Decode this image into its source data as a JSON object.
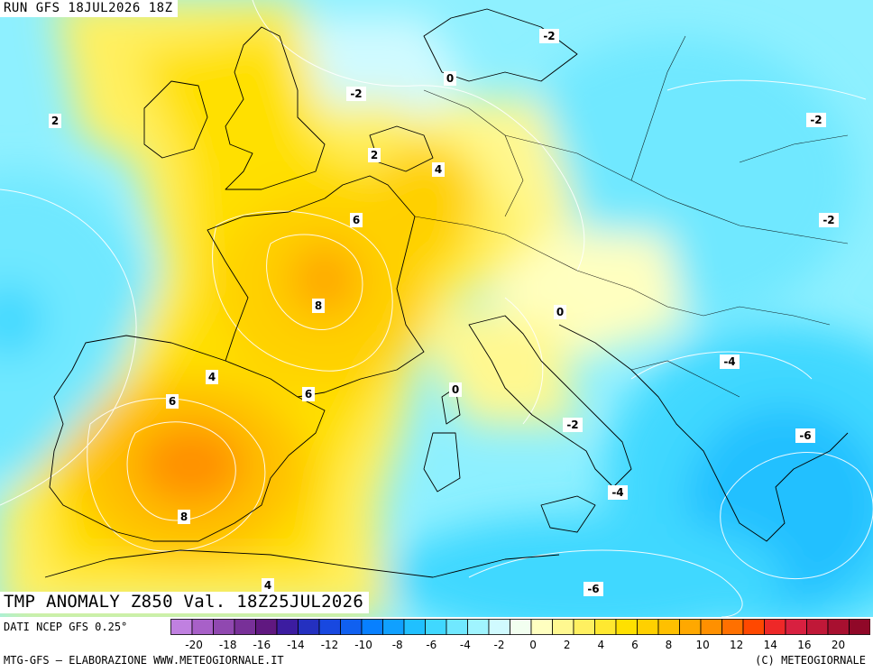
{
  "run_title": "RUN GFS 18JUL2026 18Z",
  "main_title": "TMP ANOMALY Z850 Val. 18Z25JUL2026",
  "footer": {
    "source": "DATI NCEP GFS 0.25°",
    "credit_left": "MTG-GFS — ELABORAZIONE WWW.METEOGIORNALE.IT",
    "credit_right": "(C) METEOGIORNALE"
  },
  "legend": {
    "tick_labels": [
      "-20",
      "-18",
      "-16",
      "-14",
      "-12",
      "-10",
      "-8",
      "-6",
      "-4",
      "-2",
      "0",
      "2",
      "4",
      "6",
      "8",
      "10",
      "12",
      "14",
      "16",
      "20"
    ],
    "colors": [
      "#c080e0",
      "#a860c8",
      "#9048b0",
      "#783098",
      "#601880",
      "#3c1ca0",
      "#2430c0",
      "#1848e0",
      "#1060f0",
      "#0880ff",
      "#10a0ff",
      "#20c0ff",
      "#40d8ff",
      "#70e8ff",
      "#a0f4ff",
      "#d0faff",
      "#f2fff0",
      "#ffffc0",
      "#fff890",
      "#fff060",
      "#ffe830",
      "#ffe000",
      "#ffd000",
      "#ffc000",
      "#ffa800",
      "#ff9000",
      "#ff7000",
      "#ff4800",
      "#ee2828",
      "#d82040",
      "#c01838",
      "#a81030",
      "#900828"
    ]
  },
  "contour_labels": [
    {
      "text": "2"
    },
    {
      "text": "-2"
    },
    {
      "text": "0"
    },
    {
      "text": "-2"
    },
    {
      "text": "-2"
    },
    {
      "text": "2"
    },
    {
      "text": "4"
    },
    {
      "text": "6"
    },
    {
      "text": "-2"
    },
    {
      "text": "8"
    },
    {
      "text": "0"
    },
    {
      "text": "-4"
    },
    {
      "text": "4"
    },
    {
      "text": "6"
    },
    {
      "text": "6"
    },
    {
      "text": "0"
    },
    {
      "text": "-2"
    },
    {
      "text": "-6"
    },
    {
      "text": "-4"
    },
    {
      "text": "8"
    },
    {
      "text": "4"
    },
    {
      "text": "-6"
    }
  ]
}
